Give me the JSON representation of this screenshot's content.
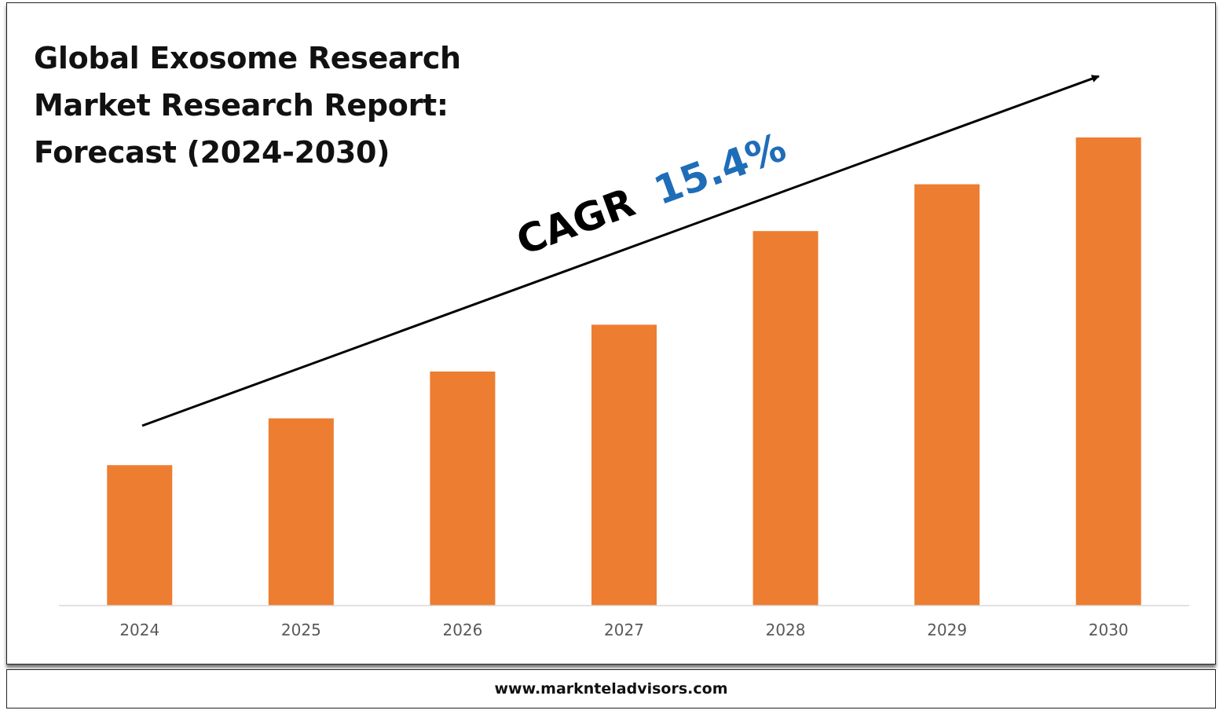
{
  "title_lines": [
    "Global Exosome Research",
    "Market Research Report:",
    "Forecast (2024-2030)"
  ],
  "annotation": {
    "cagr_label": "CAGR",
    "cagr_value": "15.4%",
    "label_color": "#000000",
    "value_color": "#1F6DB8"
  },
  "footer": {
    "url": "www.marknteladvisors.com"
  },
  "colors": {
    "bar": "#ED7D31",
    "axis": "#D9D9D9",
    "tick_text": "#595959"
  },
  "chart_data": {
    "type": "bar",
    "title": "Global Exosome Research Market Research Report: Forecast (2024-2030)",
    "categories": [
      "2024",
      "2025",
      "2026",
      "2027",
      "2028",
      "2029",
      "2030"
    ],
    "values": [
      30,
      40,
      50,
      60,
      80,
      90,
      100
    ],
    "ylim": [
      0,
      100
    ],
    "grid": false,
    "legend": "none",
    "annotations": [
      "CAGR 15.4%"
    ]
  }
}
